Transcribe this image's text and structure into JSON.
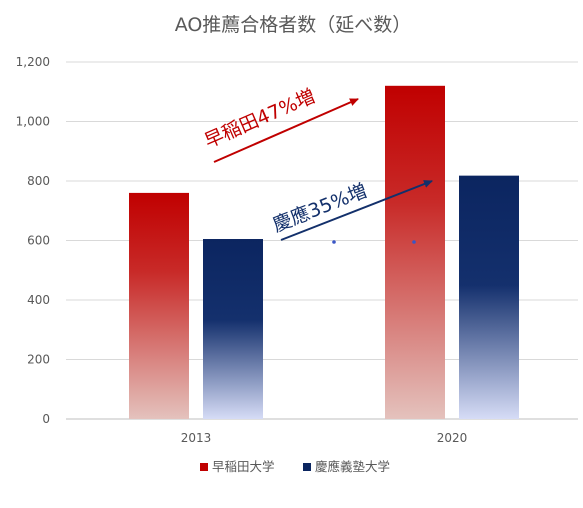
{
  "chart_data": {
    "type": "bar",
    "title": "AO推薦合格者数（延べ数）",
    "categories": [
      "2013",
      "2020"
    ],
    "series": [
      {
        "name": "早稲田大学",
        "values": [
          760,
          1120
        ],
        "color": "#c00000"
      },
      {
        "name": "慶應義塾大学",
        "values": [
          605,
          818
        ],
        "color": "#0b2560"
      }
    ],
    "ylim": [
      0,
      1200
    ],
    "yticks": [
      "0",
      "200",
      "400",
      "600",
      "800",
      "1,000",
      "1,200"
    ],
    "ytick_values": [
      0,
      200,
      400,
      600,
      800,
      1000,
      1200
    ],
    "grid": true,
    "legend_position": "bottom",
    "annotations": [
      {
        "text": "早稲田47%増",
        "color": "#c00000"
      },
      {
        "text": "慶應35%増",
        "color": "#13306b"
      }
    ]
  }
}
